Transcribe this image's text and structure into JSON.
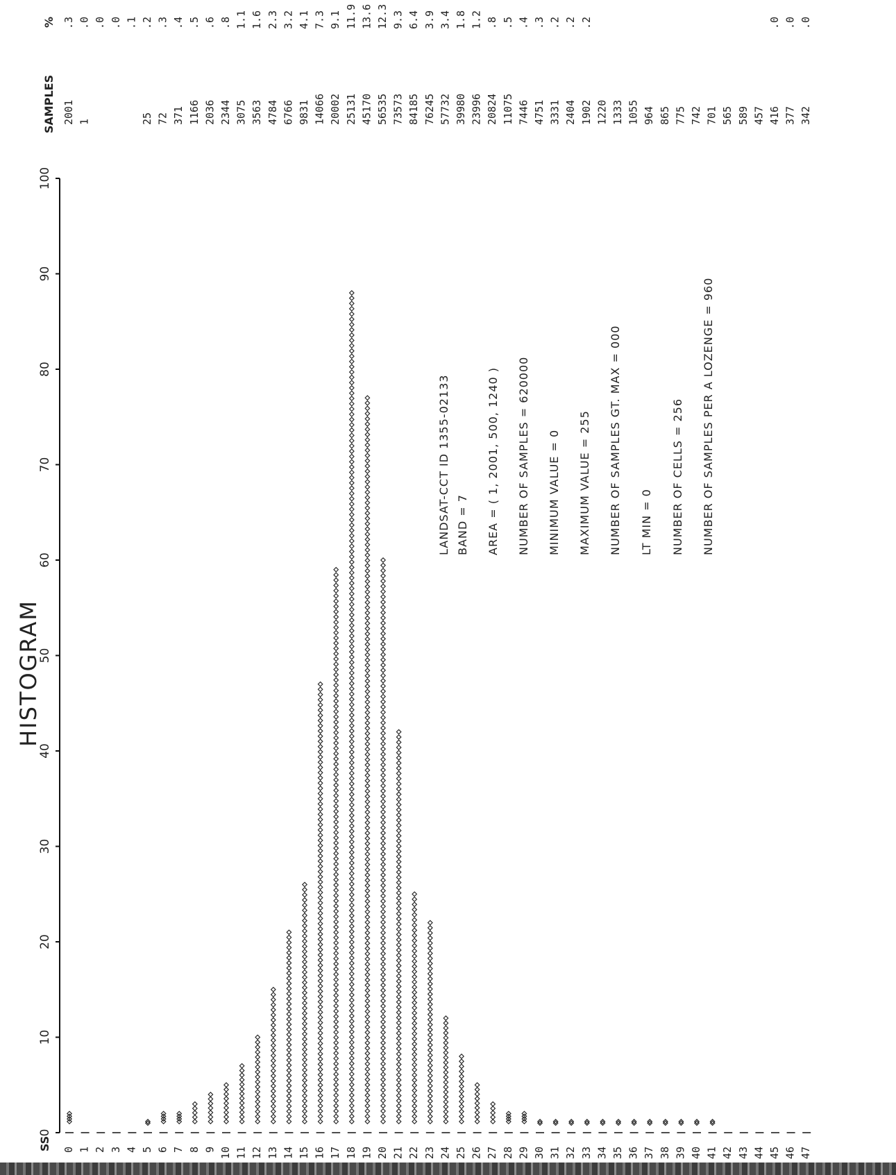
{
  "chart_data": {
    "type": "bar",
    "title": "HISTOGRAM",
    "xlabel": "SS",
    "x_ticks": [
      0,
      10,
      20,
      30,
      40,
      50,
      60,
      70,
      80,
      90,
      100
    ],
    "xlim": [
      0,
      100
    ],
    "columns": {
      "samples": "SAMPLES",
      "percent": "%"
    },
    "categories": [
      "0",
      "1",
      "2",
      "3",
      "4",
      "5",
      "6",
      "7",
      "8",
      "9",
      "10",
      "11",
      "12",
      "13",
      "14",
      "15",
      "16",
      "17",
      "18",
      "19",
      "20",
      "21",
      "22",
      "23",
      "24",
      "25",
      "26",
      "27",
      "28",
      "29",
      "30",
      "31",
      "32",
      "33",
      "34",
      "35",
      "36",
      "37",
      "38",
      "39",
      "40",
      "41",
      "42",
      "43",
      "44",
      "45",
      "46",
      "47"
    ],
    "samples": [
      "2001",
      "1",
      "",
      "",
      "",
      "25",
      "72",
      "371",
      "1166",
      "2036",
      "2344",
      "3075",
      "3563",
      "4784",
      "6766",
      "9831",
      "14066",
      "20002",
      "25131",
      "45170",
      "56535",
      "73573",
      "84185",
      "76245",
      "57732",
      "39980",
      "23996",
      "20824",
      "11075",
      "7446",
      "4751",
      "3331",
      "2404",
      "1902",
      "1220",
      "1333",
      "1055",
      "964",
      "865",
      "775",
      "742",
      "701",
      "565",
      "589",
      "457",
      "416",
      "377",
      "342"
    ],
    "percent": [
      ".3",
      ".0",
      ".0",
      ".0",
      ".1",
      ".2",
      ".3",
      ".4",
      ".5",
      ".6",
      ".8",
      "1.1",
      "1.6",
      "2.3",
      "3.2",
      "4.1",
      "7.3",
      "9.1",
      "11.9",
      "13.6",
      "12.3",
      "9.3",
      "6.4",
      "3.9",
      "3.4",
      "1.8",
      "1.2",
      ".8",
      ".5",
      ".4",
      ".3",
      ".2",
      ".2",
      ".2",
      "",
      "",
      "",
      "",
      "",
      "",
      "",
      "",
      "",
      "",
      "",
      ".0",
      ".0",
      ".0"
    ],
    "values": [
      2,
      0,
      0,
      0,
      0,
      1,
      2,
      2,
      3,
      4,
      5,
      7,
      10,
      15,
      21,
      26,
      47,
      59,
      88,
      77,
      60,
      42,
      25,
      22,
      12,
      8,
      5,
      3,
      2,
      2,
      1,
      1,
      1,
      1,
      1,
      1,
      1,
      1,
      1,
      1,
      1,
      1,
      0,
      0,
      0,
      0,
      0,
      0
    ],
    "annotations": [
      "LANDSAT-CCT      ID  1355-02133",
      "BAND  =  7",
      "AREA  =  (      1,   2001,     500,    1240  )",
      "NUMBER  OF  SAMPLES  = 620000",
      "MINIMUM  VALUE  =    0",
      "MAXIMUM  VALUE  =  255",
      "NUMBER  OF  SAMPLES  GT. MAX  = 000",
      "LT  MIN  =   0",
      "NUMBER  OF  CELLS  = 256",
      "NUMBER  OF  SAMPLES  PER  A  LOZENGE   = 960"
    ]
  }
}
